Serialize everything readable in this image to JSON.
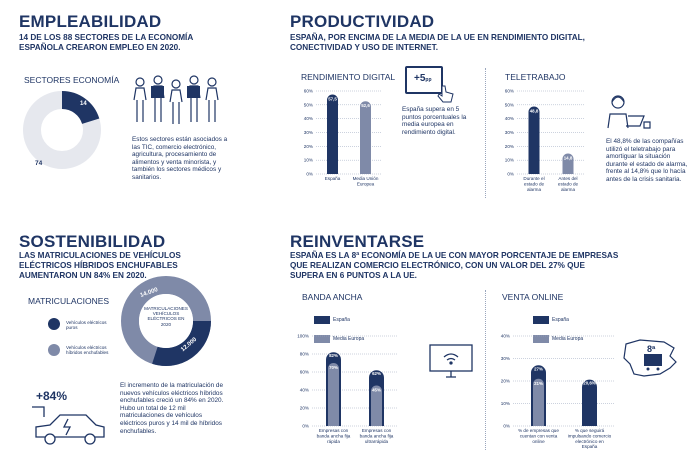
{
  "colors": {
    "navy": "#1f3564",
    "grey": "#7f8aa8",
    "light": "#e6e8ee"
  },
  "empleabilidad": {
    "title": "EMPLEABILIDAD",
    "subtitle": "14 DE LOS 88 SECTORES DE LA ECONOMÍA ESPAÑOLA CREARON EMPLEO EN 2020.",
    "sectores_label": "SECTORES ECONOMÍA",
    "donut_small": "14",
    "donut_large": "74",
    "text": "Estos sectores están asociados a las TIC, comercio electrónico, agricultura, procesamiento de alimentos y venta minorista, y también los sectores médicos y sanitarios."
  },
  "productividad": {
    "title": "PRODUCTIVIDAD",
    "subtitle": "ESPAÑA, POR ENCIMA DE LA MEDIA DE LA UE EN RENDIMIENTO DIGITAL, CONECTIVIDAD Y USO DE INTERNET.",
    "rendimiento_label": "RENDIMIENTO DIGITAL",
    "badge": "+5",
    "badge_unit": "pp",
    "badge_text": "España supera en 5 puntos porcentuales la media europea en rendimiento digital.",
    "teletrabajo_label": "TELETRABAJO",
    "teletrabajo_text": "El 48,8% de las compañías utilizó el teletrabajo para amortiguar la situación durante el estado de alarma, frente al 14,8% que lo hacía antes de la crisis sanitaria."
  },
  "sostenibilidad": {
    "title": "SOSTENIBILIDAD",
    "subtitle": "LAS MATRICULACIONES DE VEHÍCULOS ELÉCTRICOS HÍBRIDOS ENCHUFABLES AUMENTARON UN 84% EN 2020.",
    "matriculaciones_label": "MATRICULACIONES",
    "legend_1": "Vehículos eléctricos puros",
    "legend_2": "Vehículos eléctricos híbridos enchufables",
    "donut_center": "MATRICULACIONES VEHÍCULOS ELÉCTRICOS EN 2020",
    "donut_a": "14.000",
    "donut_b": "12.000",
    "pct": "+84%",
    "text": "El incremento de la matriculación de nuevos vehículos eléctricos híbridos enchufables creció un 84% en 2020. Hubo un total de 12 mil matriculaciones de vehículos eléctricos puros y 14 mil de híbridos enchufables."
  },
  "reinventarse": {
    "title": "REINVENTARSE",
    "subtitle": "ESPAÑA ES LA 8ª ECONOMÍA DE LA UE CON MAYOR PORCENTAJE DE EMPRESAS QUE REALIZAN COMERCIO ELECTRÓNICO, CON UN VALOR DEL 27% QUE SUPERA EN 6 PUNTOS A LA UE.",
    "banda_label": "BANDA ANCHA",
    "venta_label": "VENTA ONLINE",
    "rank": "8ª",
    "legend_es": "España",
    "legend_eu": "Media Europa"
  },
  "chart_data": [
    {
      "type": "bar",
      "title": "RENDIMIENTO DIGITAL",
      "categories": [
        "España",
        "Media Unión Europea"
      ],
      "values": [
        57.5,
        52.6
      ],
      "labels": [
        "57,5",
        "52,6"
      ],
      "yticks": [
        "0%",
        "10%",
        "20%",
        "30%",
        "40%",
        "50%",
        "60%"
      ],
      "ylim": [
        0,
        60
      ]
    },
    {
      "type": "bar",
      "title": "TELETRABAJO",
      "categories": [
        "Durante el estado de alarma",
        "Antes del estado de alarma"
      ],
      "values": [
        48.8,
        14.8
      ],
      "labels": [
        "48,8",
        "14,8"
      ],
      "yticks": [
        "0%",
        "10%",
        "20%",
        "30%",
        "40%",
        "50%",
        "60%"
      ],
      "ylim": [
        0,
        60
      ]
    },
    {
      "type": "bar",
      "title": "BANDA ANCHA",
      "categories": [
        "Empresas con banda ancha fija rápida",
        "Empresas con banda ancha fija ultrarrápida"
      ],
      "series": [
        {
          "name": "España",
          "values": [
            82,
            62
          ],
          "labels": [
            "82%",
            "62%"
          ]
        },
        {
          "name": "Media Europa",
          "values": [
            70,
            45
          ],
          "labels": [
            "70%",
            "45%"
          ]
        }
      ],
      "yticks": [
        "0%",
        "20%",
        "40%",
        "60%",
        "80%",
        "100%"
      ],
      "ylim": [
        0,
        100
      ]
    },
    {
      "type": "bar",
      "title": "VENTA ONLINE",
      "categories": [
        "% de empresas que cuentan con venta online",
        "% que seguirá impulsando comercio electrónico en España"
      ],
      "series": [
        {
          "name": "España",
          "values": [
            27,
            20.6
          ],
          "labels": [
            "27%",
            "20,6%"
          ]
        },
        {
          "name": "Media Europa",
          "values": [
            21,
            null
          ],
          "labels": [
            "21%",
            ""
          ]
        }
      ],
      "yticks": [
        "0%",
        "10%",
        "20%",
        "30%",
        "40%"
      ],
      "ylim": [
        0,
        40
      ]
    }
  ]
}
